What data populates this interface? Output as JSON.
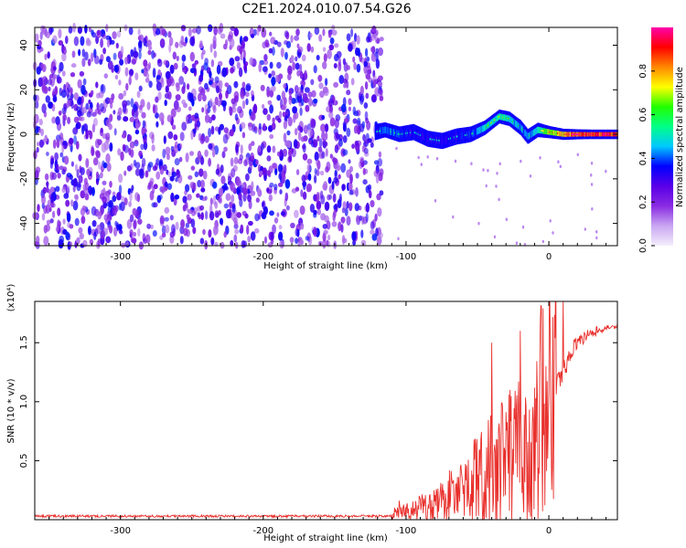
{
  "title": "C2E1.2024.010.07.54.G26",
  "chart_data": [
    {
      "type": "heatmap",
      "xlabel": "Height of straight line (km)",
      "ylabel": "Frequency (Hz)",
      "xlim": [
        -360,
        48
      ],
      "ylim": [
        -50,
        48
      ],
      "xticks": [
        -300,
        -200,
        -100,
        0
      ],
      "xtick_labels": [
        "-300",
        "-200",
        "-100",
        "0"
      ],
      "yticks": [
        -40,
        -20,
        0,
        20,
        40
      ],
      "ytick_labels": [
        "-40",
        "-20",
        "0",
        "20",
        "40"
      ],
      "colorbar": {
        "label": "Normalized spectral amplitude",
        "range": [
          0,
          1
        ],
        "ticks": [
          0.0,
          0.2,
          0.4,
          0.6,
          0.8
        ],
        "tick_labels": [
          "0.0",
          "0.2",
          "0.4",
          "0.6",
          "0.8"
        ],
        "colormap": [
          "#f4eefc",
          "#c9a6f2",
          "#8a2be2",
          "#5a00e8",
          "#0000ff",
          "#00c8ff",
          "#00ff88",
          "#22ff00",
          "#ffff00",
          "#ff8800",
          "#ff0000",
          "#ff00aa"
        ]
      },
      "noise_region": {
        "x_range": [
          -360,
          -117
        ],
        "typical_amplitude": 0.1
      },
      "ridge": {
        "description": "narrow-band signal",
        "x": [
          -122,
          -115,
          -105,
          -95,
          -85,
          -75,
          -65,
          -55,
          -45,
          -35,
          -28,
          -20,
          -15,
          -8,
          0,
          10,
          20,
          30,
          40,
          48
        ],
        "freq": [
          1,
          2,
          0,
          1,
          -2,
          -3,
          -1,
          0,
          3,
          8,
          7,
          3,
          -1,
          2,
          1,
          0,
          0,
          0,
          0,
          0
        ],
        "amplitude": [
          0.35,
          0.45,
          0.4,
          0.35,
          0.35,
          0.35,
          0.35,
          0.4,
          0.5,
          0.55,
          0.5,
          0.45,
          0.45,
          0.5,
          0.7,
          0.8,
          0.9,
          0.95,
          0.95,
          0.95
        ]
      },
      "grid": false
    },
    {
      "type": "line",
      "xlabel": "Height of straight line (km)",
      "ylabel": "SNR (10 * v/v)",
      "yscale_label": "(x10⁴)",
      "xlim": [
        -360,
        48
      ],
      "ylim": [
        0,
        1.85
      ],
      "xticks": [
        -300,
        -200,
        -100,
        0
      ],
      "xtick_labels": [
        "-300",
        "-200",
        "-100",
        "0"
      ],
      "yticks": [
        0.5,
        1.0,
        1.5
      ],
      "ytick_labels": [
        "0.5",
        "1.0",
        "1.5"
      ],
      "color": "#e8302c",
      "series": [
        {
          "x": [
            -360,
            -300,
            -250,
            -200,
            -150,
            -110,
            -105,
            -100,
            -90,
            -80,
            -70,
            -60,
            -50,
            -40,
            -30,
            -25,
            -20,
            -15,
            -10,
            -5,
            0,
            5,
            10,
            15,
            20,
            30,
            40,
            48
          ],
          "y": [
            0.03,
            0.03,
            0.03,
            0.03,
            0.03,
            0.03,
            0.08,
            0.07,
            0.1,
            0.12,
            0.2,
            0.25,
            0.35,
            0.45,
            0.5,
            0.55,
            0.6,
            0.5,
            0.6,
            0.95,
            1.05,
            1.15,
            1.25,
            1.4,
            1.5,
            1.58,
            1.62,
            1.63
          ]
        }
      ],
      "peaks": [
        {
          "x": -40,
          "y": 1.5
        },
        {
          "x": -20,
          "y": 1.6
        },
        {
          "x": 10,
          "y": 1.85
        }
      ],
      "grid": false
    }
  ]
}
